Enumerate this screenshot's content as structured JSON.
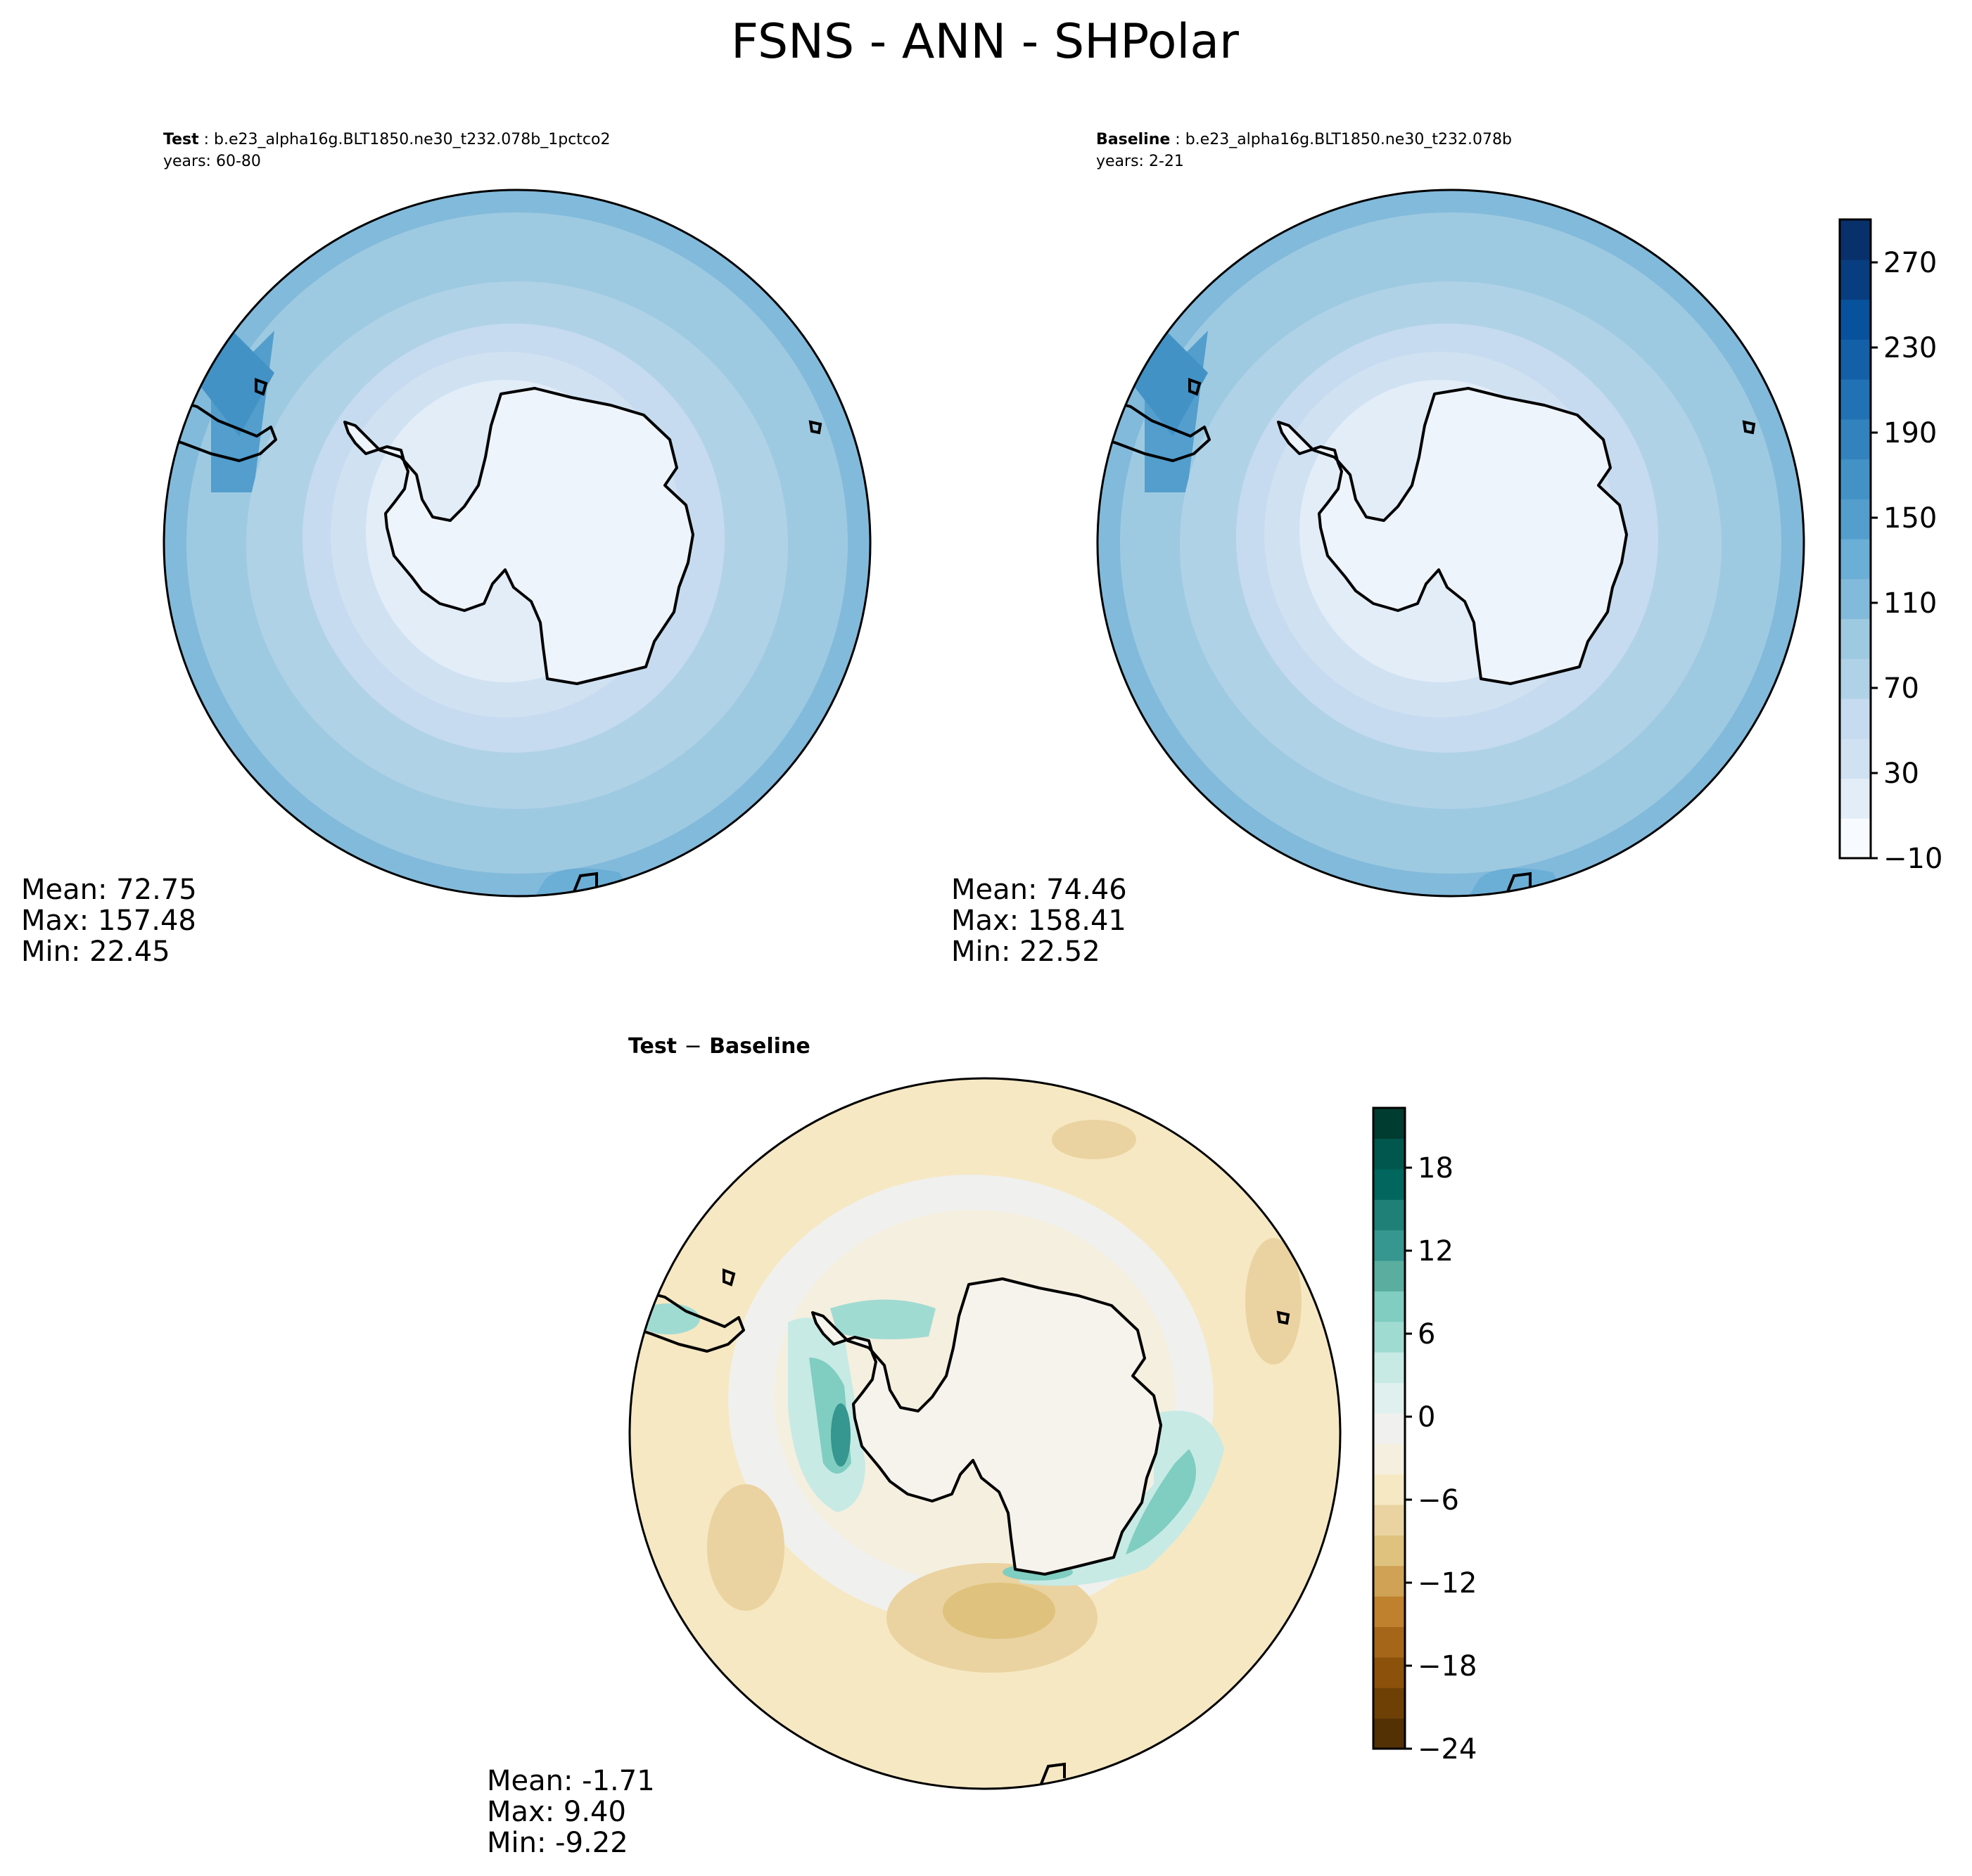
{
  "title": "FSNS - ANN - SHPolar",
  "panels": [
    {
      "id": "test",
      "label": "Test",
      "case": "b.e23_alpha16g.BLT1850.ne30_t232.078b_1pctco2",
      "years": "years: 60-80",
      "stats": {
        "mean": "Mean: 72.75",
        "max": "Max: 157.48",
        "min": "Min: 22.45"
      }
    },
    {
      "id": "baseline",
      "label": "Baseline",
      "case": "b.e23_alpha16g.BLT1850.ne30_t232.078b",
      "years": "years: 2-21",
      "stats": {
        "mean": "Mean: 74.46",
        "max": "Max: 158.41",
        "min": "Min: 22.52"
      }
    },
    {
      "id": "diff",
      "label_left": "Test",
      "label_sep": "−",
      "label_right": "Baseline",
      "stats": {
        "mean": "Mean: -1.71",
        "max": "Max:  9.40",
        "min": "Min: -9.22"
      }
    }
  ],
  "colorbars": {
    "main": {
      "ticks": [
        "270",
        "230",
        "190",
        "150",
        "110",
        "70",
        "30",
        "−10"
      ],
      "colors": [
        "#f7fbff",
        "#e2edf8",
        "#d0e1f2",
        "#c6dbef",
        "#b0d2e7",
        "#9ecae1",
        "#82badb",
        "#6baed6",
        "#539ecd",
        "#4292c6",
        "#3282be",
        "#2171b5",
        "#1460a8",
        "#08519c",
        "#083d7f",
        "#08306b"
      ]
    },
    "diff": {
      "ticks": [
        "18",
        "12",
        "6",
        "0",
        "−6",
        "−12",
        "−18",
        "−24"
      ],
      "colors": [
        "#543005",
        "#6e4006",
        "#8c510a",
        "#a5661a",
        "#bf812d",
        "#cfa256",
        "#dfc27d",
        "#ead3a0",
        "#f6e8c3",
        "#f5efdf",
        "#f0f0ee",
        "#dff0ee",
        "#c7eae5",
        "#a0dbd2",
        "#80cdc1",
        "#5aae9f",
        "#35978f",
        "#1f8077",
        "#01665e",
        "#01574d",
        "#003c30"
      ]
    }
  }
}
